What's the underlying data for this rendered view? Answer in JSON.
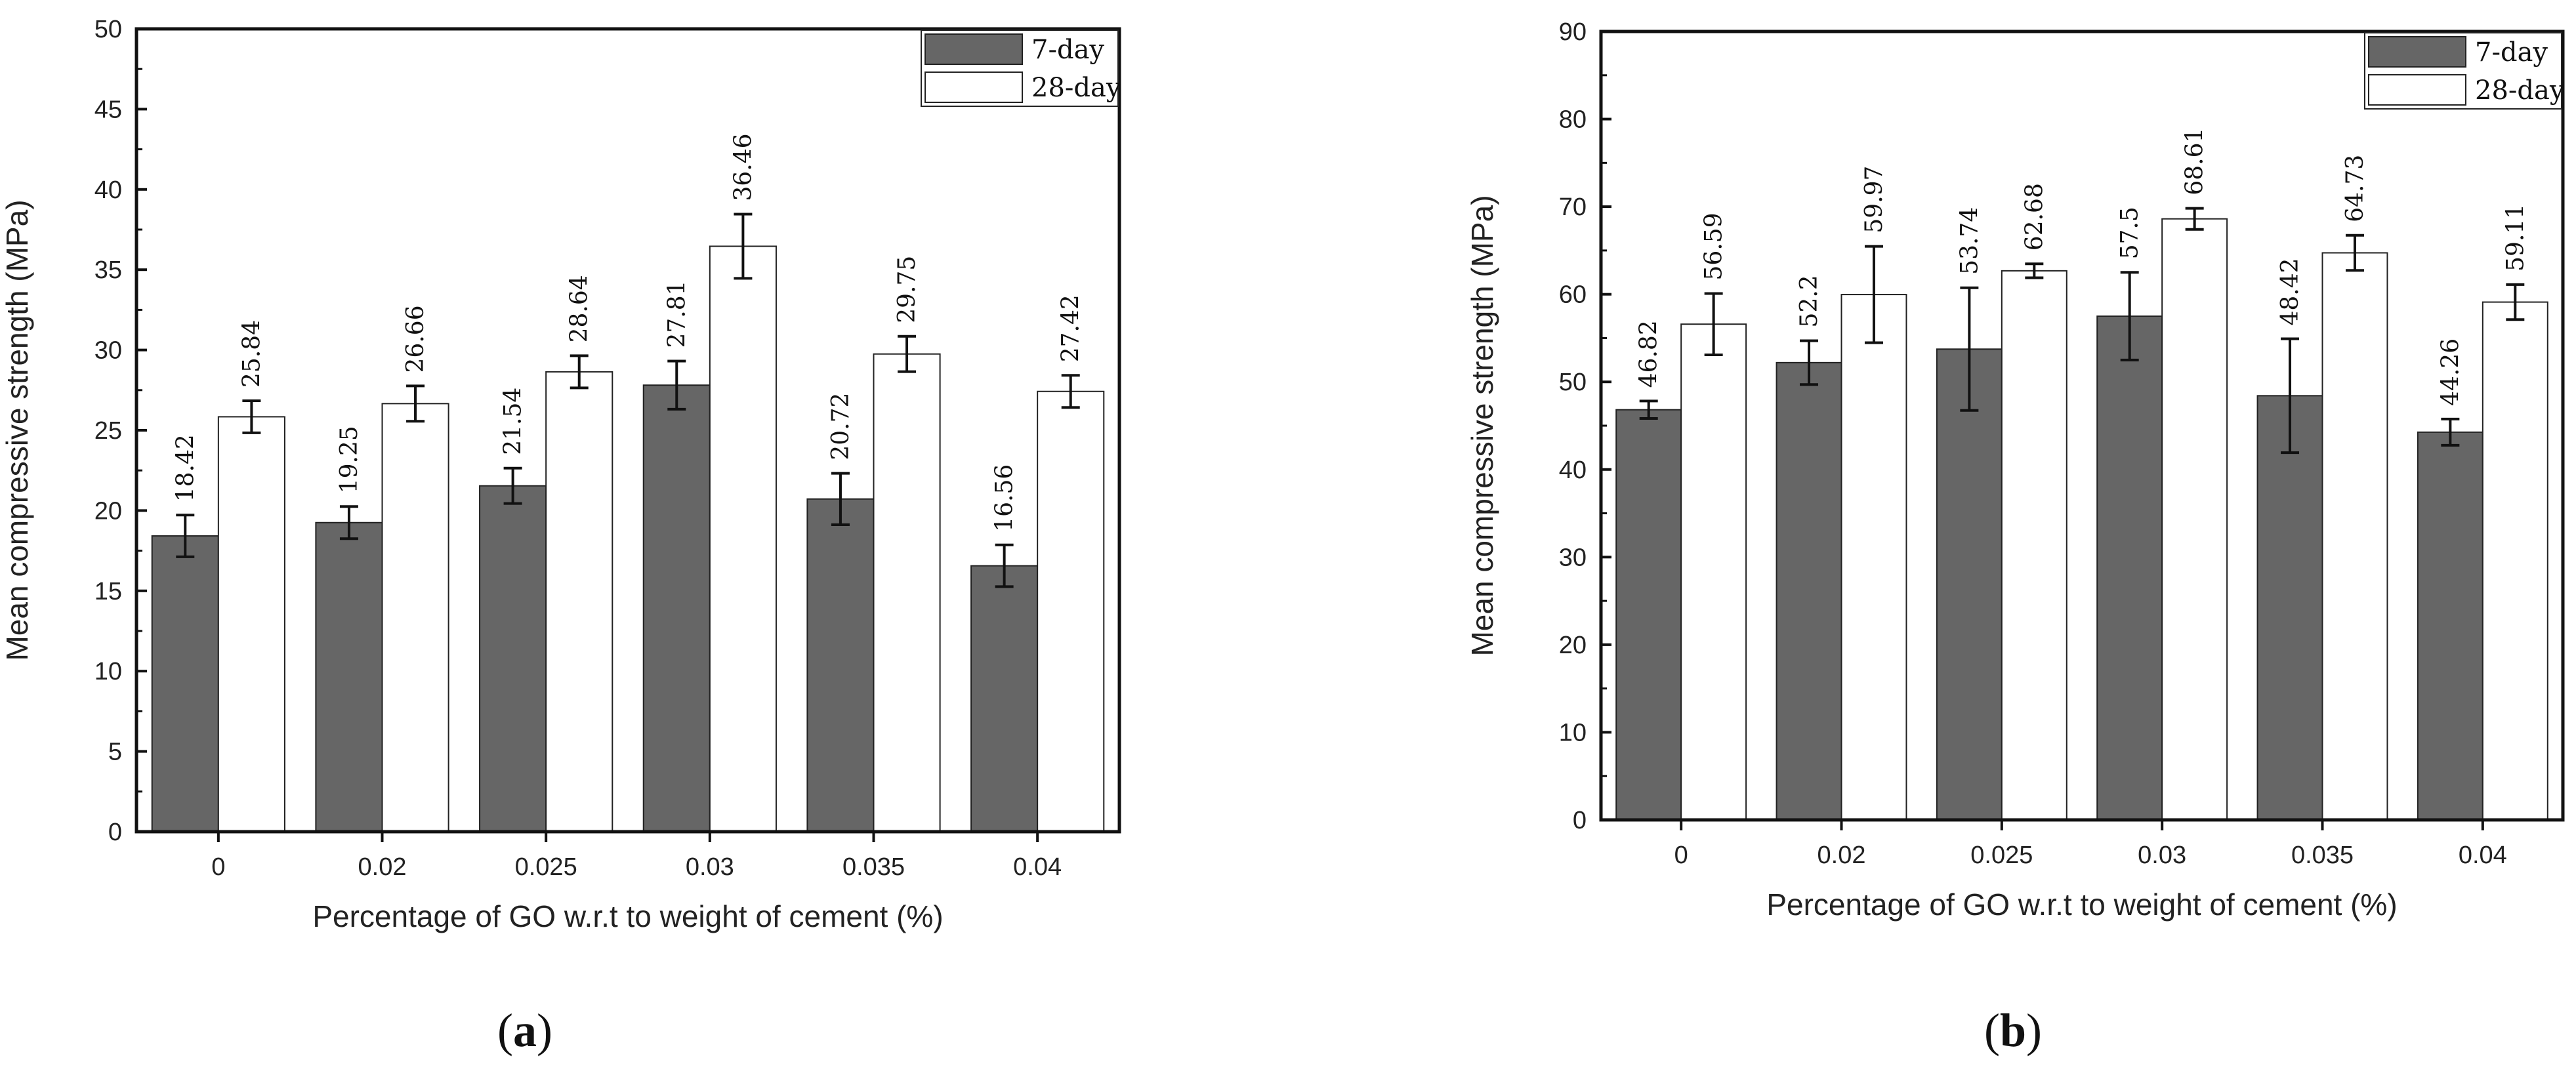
{
  "chart_data": [
    {
      "type": "bar",
      "panel": "(a)",
      "panel_letter": "a",
      "title": "",
      "xlabel": "Percentage of GO w.r.t to weight of cement (%)",
      "ylabel": "Mean compressive strength (MPa)",
      "ylim": [
        0,
        50
      ],
      "yticks": [
        0,
        5,
        10,
        15,
        20,
        25,
        30,
        35,
        40,
        45,
        50
      ],
      "categories": [
        "0",
        "0.02",
        "0.025",
        "0.03",
        "0.035",
        "0.04"
      ],
      "legend_position": "top-right",
      "series": [
        {
          "name": "7-day",
          "color": "#666666",
          "values": [
            18.42,
            19.25,
            21.54,
            27.81,
            20.72,
            16.56
          ],
          "labels": [
            "18.42",
            "19.25",
            "21.54",
            "27.81",
            "20.72",
            "16.56"
          ],
          "errors": [
            1.3,
            1.0,
            1.1,
            1.5,
            1.6,
            1.3
          ]
        },
        {
          "name": "28-day",
          "color": "#ffffff",
          "values": [
            25.84,
            26.66,
            28.64,
            36.46,
            29.75,
            27.42
          ],
          "labels": [
            "25.84",
            "26.66",
            "28.64",
            "36.46",
            "29.75",
            "27.42"
          ],
          "errors": [
            1.0,
            1.1,
            1.0,
            2.0,
            1.1,
            1.0
          ]
        }
      ]
    },
    {
      "type": "bar",
      "panel": "(b)",
      "panel_letter": "b",
      "title": "",
      "xlabel": "Percentage of GO w.r.t to weight of cement (%)",
      "ylabel": "Mean compressive strength (MPa)",
      "ylim": [
        0,
        90
      ],
      "yticks": [
        0,
        10,
        20,
        30,
        40,
        50,
        60,
        70,
        80,
        90
      ],
      "categories": [
        "0",
        "0.02",
        "0.025",
        "0.03",
        "0.035",
        "0.04"
      ],
      "legend_position": "top-right",
      "series": [
        {
          "name": "7-day",
          "color": "#666666",
          "values": [
            46.82,
            52.2,
            53.74,
            57.5,
            48.42,
            44.26
          ],
          "labels": [
            "46.82",
            "52.2",
            "53.74",
            "57.5",
            "48.42",
            "44.26"
          ],
          "errors": [
            1.0,
            2.5,
            7.0,
            5.0,
            6.5,
            1.5
          ]
        },
        {
          "name": "28-day",
          "color": "#ffffff",
          "values": [
            56.59,
            59.97,
            62.68,
            68.61,
            64.73,
            59.11
          ],
          "labels": [
            "56.59",
            "59.97",
            "62.68",
            "68.61",
            "64.73",
            "59.11"
          ],
          "errors": [
            3.5,
            5.5,
            0.8,
            1.2,
            2.0,
            2.0
          ]
        }
      ]
    }
  ]
}
